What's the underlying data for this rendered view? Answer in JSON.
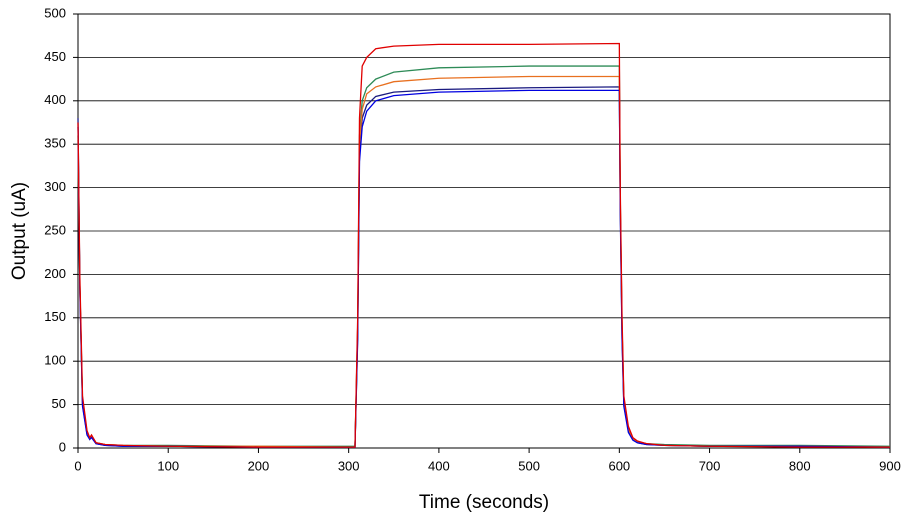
{
  "chart_data": {
    "type": "line",
    "x_label": "Time (seconds)",
    "y_label": "Output (uA)",
    "x": [
      0,
      2,
      5,
      10,
      13,
      15,
      20,
      30,
      50,
      100,
      200,
      300,
      307,
      310,
      312,
      315,
      320,
      330,
      350,
      400,
      500,
      600,
      601,
      603,
      605,
      610,
      615,
      620,
      630,
      650,
      700,
      800,
      900
    ],
    "series": [
      {
        "color": "#1a1a80",
        "values": [
          380,
          190,
          50,
          16,
          10,
          13,
          5,
          3,
          2,
          2,
          1,
          1,
          1,
          130,
          340,
          380,
          395,
          405,
          410,
          413,
          415,
          416,
          280,
          130,
          50,
          20,
          10,
          6,
          4,
          3,
          2,
          2,
          1
        ]
      },
      {
        "color": "#2e8b57",
        "values": [
          360,
          190,
          55,
          18,
          11,
          14,
          6,
          4,
          3,
          3,
          2,
          2,
          2,
          140,
          360,
          400,
          415,
          425,
          433,
          438,
          440,
          440,
          290,
          140,
          55,
          22,
          11,
          7,
          5,
          4,
          3,
          3,
          2
        ]
      },
      {
        "color": "#e87020",
        "values": [
          355,
          185,
          50,
          18,
          11,
          14,
          6,
          4,
          3,
          2,
          2,
          1,
          1,
          140,
          350,
          390,
          408,
          416,
          422,
          426,
          428,
          428,
          285,
          140,
          55,
          22,
          11,
          7,
          5,
          3,
          2,
          2,
          1
        ]
      },
      {
        "color": "#0000e0",
        "values": [
          370,
          185,
          48,
          15,
          10,
          12,
          5,
          3,
          2,
          2,
          1,
          1,
          1,
          125,
          330,
          370,
          388,
          400,
          406,
          410,
          412,
          412,
          275,
          125,
          48,
          18,
          9,
          6,
          4,
          3,
          2,
          2,
          1
        ]
      },
      {
        "color": "#e00000",
        "values": [
          375,
          200,
          60,
          20,
          12,
          15,
          6,
          4,
          3,
          2,
          1,
          1,
          1,
          150,
          380,
          440,
          450,
          460,
          463,
          465,
          465,
          466,
          300,
          150,
          60,
          25,
          12,
          8,
          5,
          3,
          2,
          1,
          1
        ]
      }
    ],
    "xlim": [
      0,
      900
    ],
    "xticks": [
      0,
      100,
      200,
      300,
      400,
      500,
      600,
      700,
      800,
      900
    ],
    "ylim": [
      0,
      500
    ],
    "yticks": [
      0,
      50,
      100,
      150,
      200,
      250,
      300,
      350,
      400,
      450,
      500
    ],
    "grid": true
  }
}
